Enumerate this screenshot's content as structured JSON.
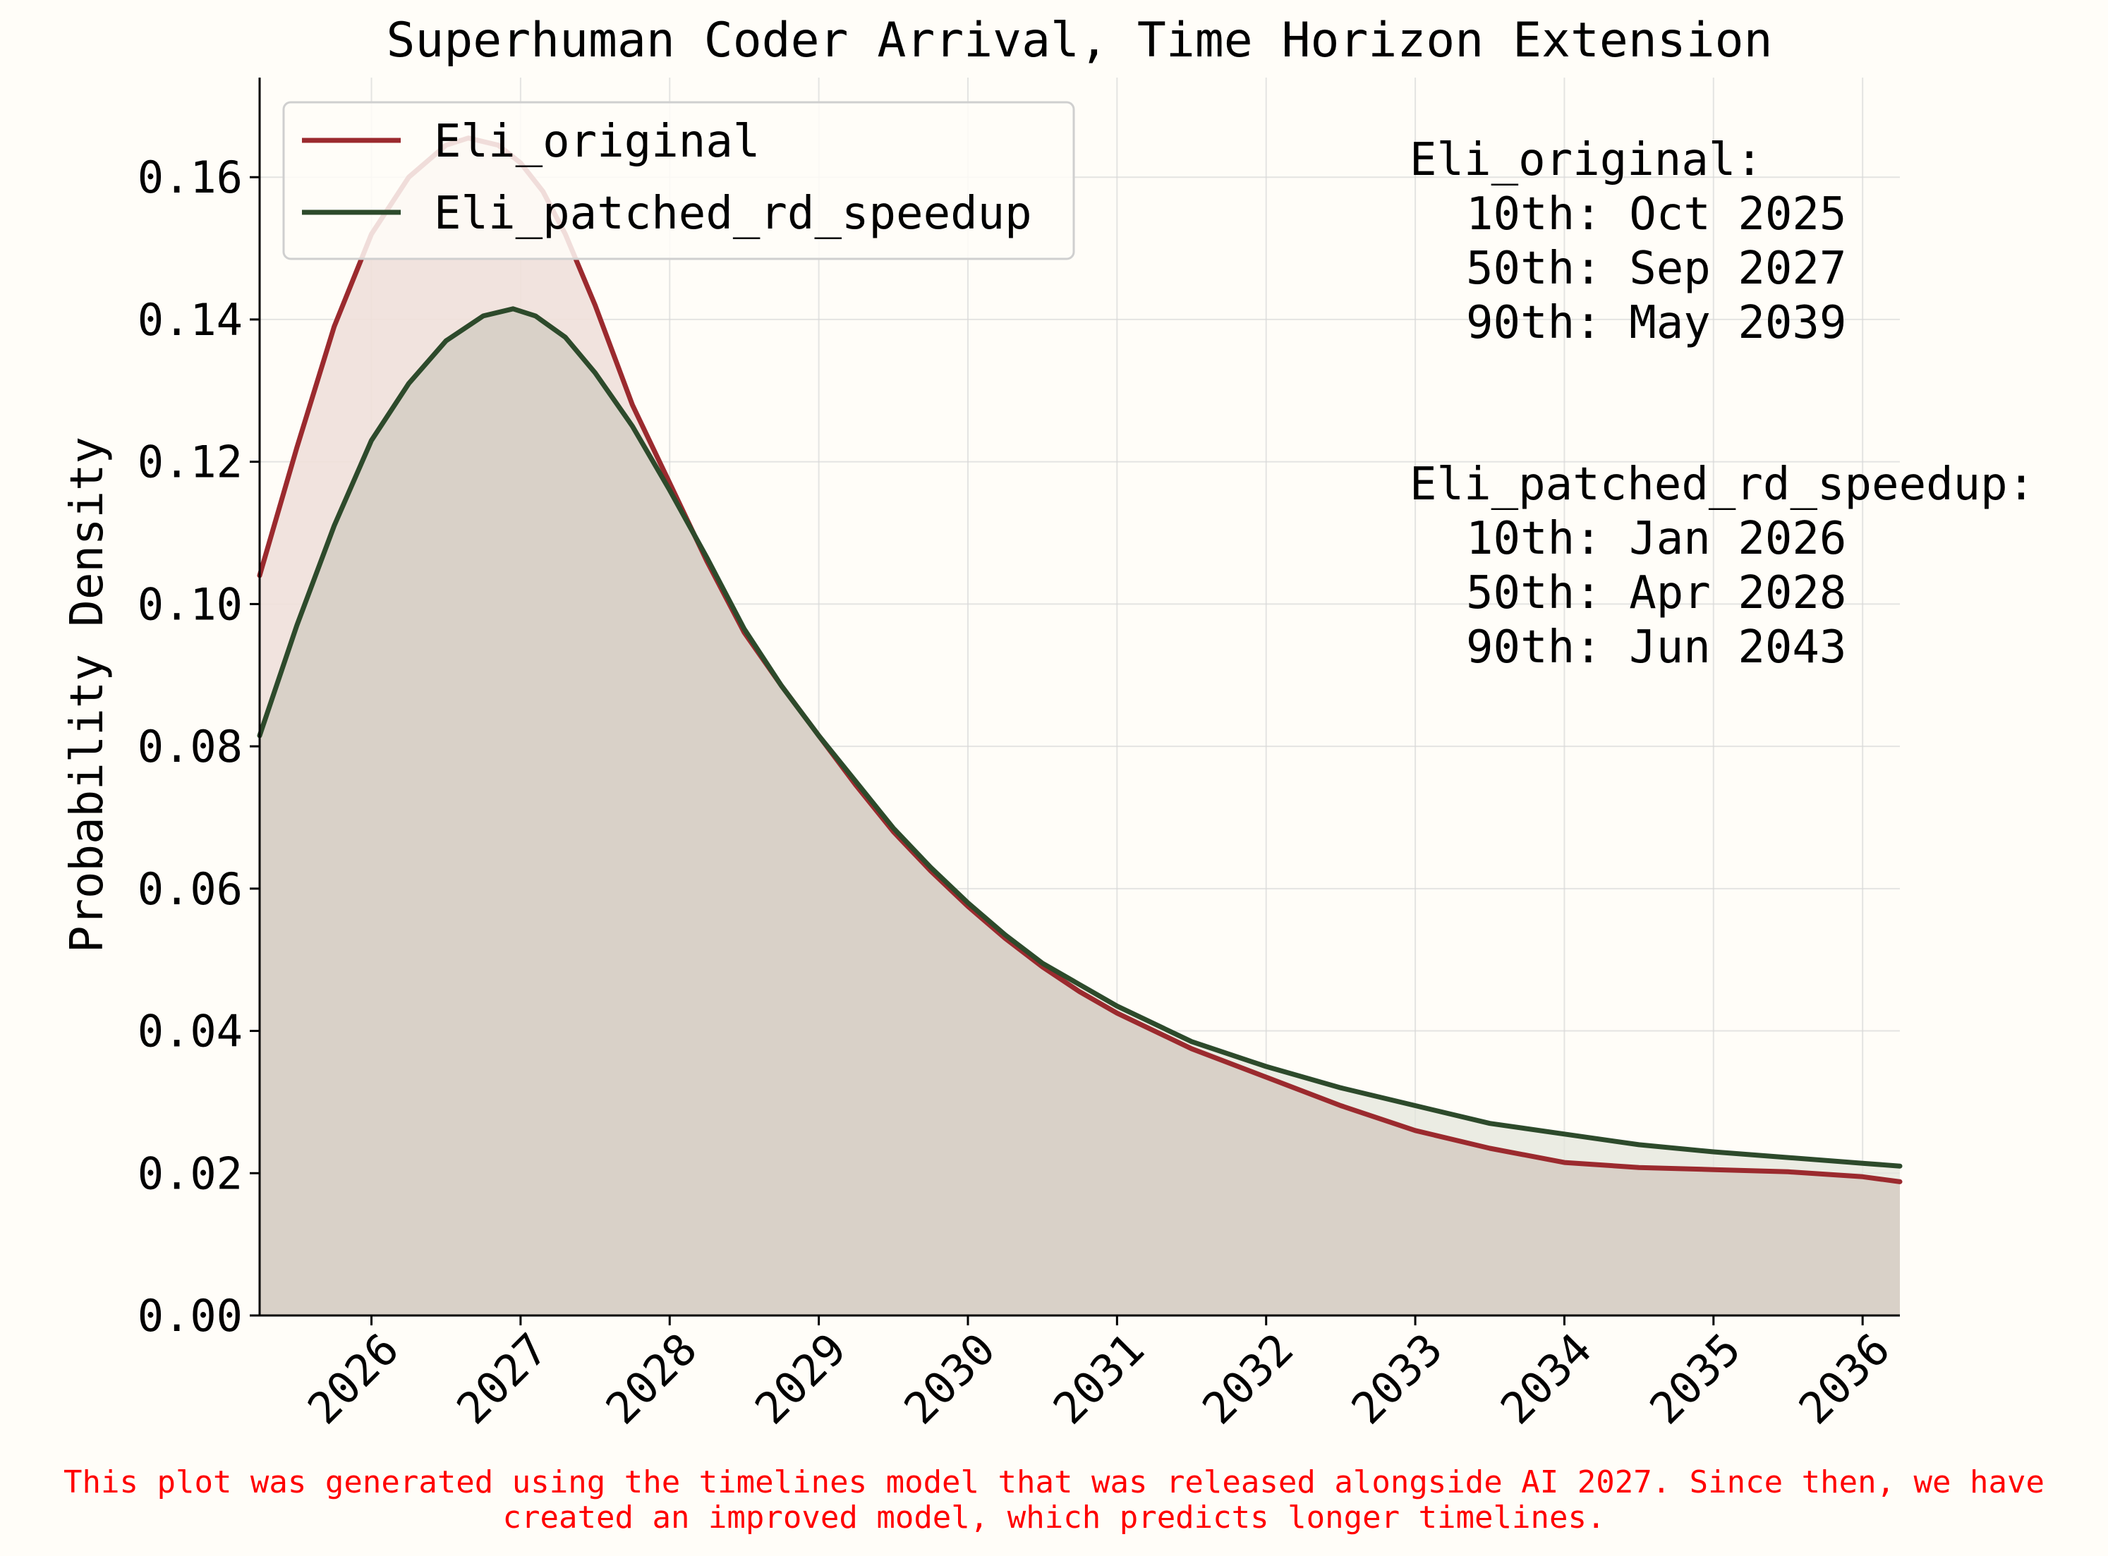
{
  "chart_data": {
    "type": "line",
    "title": "Superhuman Coder Arrival, Time Horizon Extension",
    "xlabel": "",
    "ylabel": "Probability Density",
    "xlim": [
      2025.25,
      2036.25
    ],
    "ylim": [
      0,
      0.174
    ],
    "x_ticks": [
      "2026",
      "2027",
      "2028",
      "2029",
      "2030",
      "2031",
      "2032",
      "2033",
      "2034",
      "2035",
      "2036"
    ],
    "y_ticks": [
      "0.00",
      "0.02",
      "0.04",
      "0.06",
      "0.08",
      "0.10",
      "0.12",
      "0.14",
      "0.16"
    ],
    "grid": true,
    "legend_position": "top-left",
    "series": [
      {
        "name": "Eli_original",
        "color": "#9b2a2e",
        "fill": "#f0e0da",
        "x": [
          2025.25,
          2025.5,
          2025.75,
          2026.0,
          2026.25,
          2026.5,
          2026.65,
          2026.85,
          2027.0,
          2027.15,
          2027.3,
          2027.5,
          2027.75,
          2028.0,
          2028.25,
          2028.5,
          2028.75,
          2029.0,
          2029.25,
          2029.5,
          2029.75,
          2030.0,
          2030.25,
          2030.5,
          2030.75,
          2031.0,
          2031.5,
          2032.0,
          2032.5,
          2033.0,
          2033.5,
          2034.0,
          2034.5,
          2035.0,
          2035.5,
          2036.0,
          2036.25
        ],
        "y": [
          0.104,
          0.122,
          0.139,
          0.152,
          0.16,
          0.1645,
          0.1655,
          0.1645,
          0.162,
          0.158,
          0.152,
          0.142,
          0.128,
          0.117,
          0.106,
          0.096,
          0.0885,
          0.0815,
          0.0745,
          0.068,
          0.0625,
          0.0575,
          0.053,
          0.049,
          0.0455,
          0.0425,
          0.0375,
          0.0335,
          0.0295,
          0.026,
          0.0235,
          0.0215,
          0.0208,
          0.0205,
          0.0202,
          0.0195,
          0.0188
        ]
      },
      {
        "name": "Eli_patched_rd_speedup",
        "color": "#2d4a2b",
        "fill": "#e4e6dc",
        "x": [
          2025.25,
          2025.5,
          2025.75,
          2026.0,
          2026.25,
          2026.5,
          2026.75,
          2026.95,
          2027.1,
          2027.3,
          2027.5,
          2027.75,
          2028.0,
          2028.25,
          2028.5,
          2028.75,
          2029.0,
          2029.25,
          2029.5,
          2029.75,
          2030.0,
          2030.25,
          2030.5,
          2030.75,
          2031.0,
          2031.5,
          2032.0,
          2032.5,
          2033.0,
          2033.5,
          2034.0,
          2034.5,
          2035.0,
          2035.5,
          2036.0,
          2036.25
        ],
        "y": [
          0.0815,
          0.097,
          0.111,
          0.123,
          0.131,
          0.137,
          0.1405,
          0.1415,
          0.1405,
          0.1375,
          0.1325,
          0.125,
          0.116,
          0.1065,
          0.0965,
          0.0885,
          0.0815,
          0.075,
          0.0685,
          0.063,
          0.058,
          0.0535,
          0.0495,
          0.0465,
          0.0435,
          0.0385,
          0.035,
          0.032,
          0.0295,
          0.027,
          0.0255,
          0.024,
          0.023,
          0.0222,
          0.0214,
          0.021
        ]
      }
    ],
    "annotations": [
      {
        "series": "Eli_original",
        "header": "Eli_original:",
        "lines": [
          "10th: Oct 2025",
          "50th: Sep 2027",
          "90th: May 2039"
        ]
      },
      {
        "series": "Eli_patched_rd_speedup",
        "header": "Eli_patched_rd_speedup:",
        "lines": [
          "10th: Jan 2026",
          "50th: Apr 2028",
          "90th: Jun 2043"
        ]
      }
    ],
    "footnote": [
      "This plot was generated using the timelines model that was released alongside AI 2027. Since then, we have",
      "created an improved model, which predicts longer timelines."
    ],
    "footnote_color": "#ff0000"
  }
}
